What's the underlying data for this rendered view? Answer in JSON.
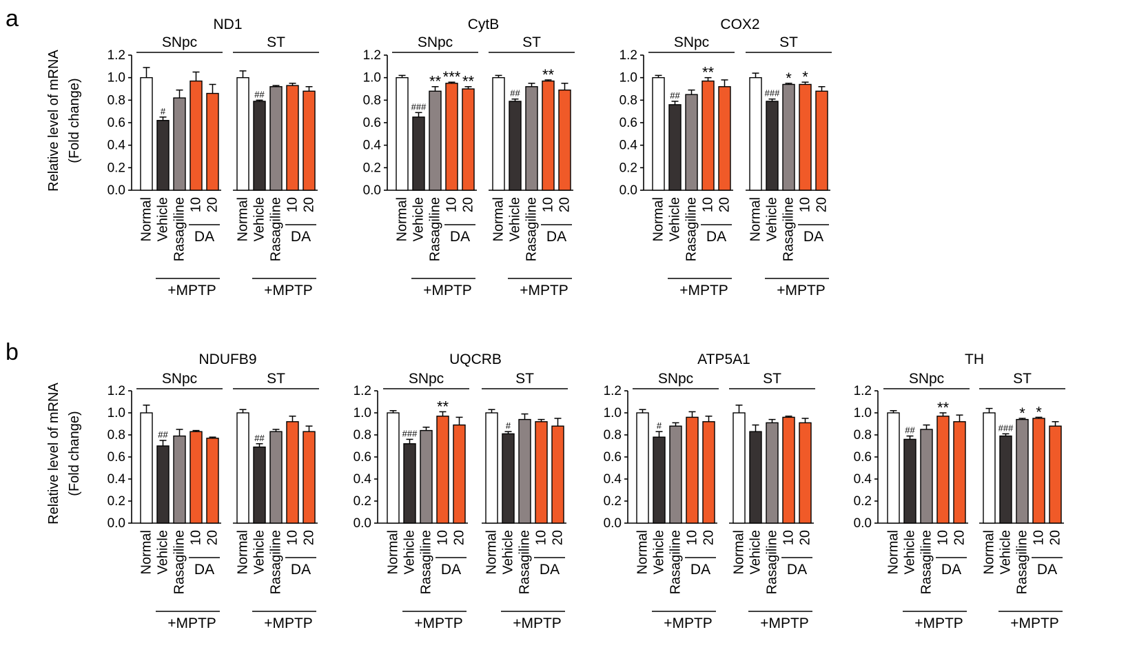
{
  "colors": {
    "normal": "#ffffff",
    "vehicle": "#373232",
    "rasagiline": "#8c8282",
    "da": "#f05a28",
    "axis": "#000000"
  },
  "labels": {
    "panel_a": "a",
    "panel_b": "b",
    "ylabel_line1": "Relative level of mRNA",
    "ylabel_line2": "(Fold change)",
    "group_snpc": "SNpc",
    "group_st": "ST",
    "bar_names": [
      "Normal",
      "Vehicle",
      "Rasagiline",
      "10",
      "20"
    ],
    "da": "DA",
    "mptp": "+MPTP"
  },
  "y_ticks": [
    "0.0",
    "0.2",
    "0.4",
    "0.6",
    "0.8",
    "1.0",
    "1.2"
  ],
  "chart_data": [
    {
      "type": "bar",
      "panel": "a",
      "title": "ND1",
      "ylabel": "Relative level of mRNA (Fold change)",
      "ylim": [
        0,
        1.2
      ],
      "categories": [
        "Normal",
        "Vehicle",
        "Rasagiline",
        "DA 10",
        "DA 20"
      ],
      "series": [
        {
          "name": "SNpc",
          "values": [
            1.0,
            0.62,
            0.82,
            0.97,
            0.86
          ],
          "errors": [
            0.09,
            0.03,
            0.07,
            0.08,
            0.08
          ],
          "annotations": [
            "",
            "#",
            "",
            "",
            ""
          ]
        },
        {
          "name": "ST",
          "values": [
            1.0,
            0.79,
            0.92,
            0.93,
            0.88
          ],
          "errors": [
            0.06,
            0.01,
            0.01,
            0.02,
            0.04
          ],
          "annotations": [
            "",
            "##",
            "",
            "",
            ""
          ]
        }
      ]
    },
    {
      "type": "bar",
      "panel": "a",
      "title": "CytB",
      "ylabel": "Relative level of mRNA (Fold change)",
      "ylim": [
        0,
        1.2
      ],
      "categories": [
        "Normal",
        "Vehicle",
        "Rasagiline",
        "DA 10",
        "DA 20"
      ],
      "series": [
        {
          "name": "SNpc",
          "values": [
            1.0,
            0.65,
            0.88,
            0.95,
            0.9
          ],
          "errors": [
            0.02,
            0.04,
            0.04,
            0.01,
            0.02
          ],
          "annotations": [
            "",
            "###",
            "**",
            "***",
            "**"
          ]
        },
        {
          "name": "ST",
          "values": [
            1.0,
            0.79,
            0.92,
            0.97,
            0.89
          ],
          "errors": [
            0.02,
            0.02,
            0.03,
            0.01,
            0.06
          ],
          "annotations": [
            "",
            "##",
            "",
            "**",
            ""
          ]
        }
      ]
    },
    {
      "type": "bar",
      "panel": "a",
      "title": "COX2",
      "ylabel": "Relative level of mRNA (Fold change)",
      "ylim": [
        0,
        1.2
      ],
      "categories": [
        "Normal",
        "Vehicle",
        "Rasagiline",
        "DA 10",
        "DA 20"
      ],
      "series": [
        {
          "name": "SNpc",
          "values": [
            1.0,
            0.76,
            0.85,
            0.97,
            0.92
          ],
          "errors": [
            0.02,
            0.03,
            0.04,
            0.03,
            0.06
          ],
          "annotations": [
            "",
            "##",
            "",
            "**",
            ""
          ]
        },
        {
          "name": "ST",
          "values": [
            1.0,
            0.79,
            0.94,
            0.94,
            0.88
          ],
          "errors": [
            0.04,
            0.02,
            0.01,
            0.02,
            0.04
          ],
          "annotations": [
            "",
            "###",
            "*",
            "*",
            ""
          ]
        }
      ]
    },
    {
      "type": "bar",
      "panel": "b",
      "title": "NDUFB9",
      "ylabel": "Relative level of mRNA (Fold change)",
      "ylim": [
        0,
        1.2
      ],
      "categories": [
        "Normal",
        "Vehicle",
        "Rasagiline",
        "DA 10",
        "DA 20"
      ],
      "series": [
        {
          "name": "SNpc",
          "values": [
            1.0,
            0.7,
            0.79,
            0.83,
            0.77
          ],
          "errors": [
            0.07,
            0.05,
            0.06,
            0.01,
            0.01
          ],
          "annotations": [
            "",
            "##",
            "",
            "",
            ""
          ]
        },
        {
          "name": "ST",
          "values": [
            1.0,
            0.69,
            0.83,
            0.92,
            0.83
          ],
          "errors": [
            0.03,
            0.03,
            0.02,
            0.05,
            0.05
          ],
          "annotations": [
            "",
            "##",
            "",
            "",
            ""
          ]
        }
      ]
    },
    {
      "type": "bar",
      "panel": "b",
      "title": "UQCRB",
      "ylabel": "Relative level of mRNA (Fold change)",
      "ylim": [
        0,
        1.2
      ],
      "categories": [
        "Normal",
        "Vehicle",
        "Rasagiline",
        "DA 10",
        "DA 20"
      ],
      "series": [
        {
          "name": "SNpc",
          "values": [
            1.0,
            0.72,
            0.84,
            0.97,
            0.89
          ],
          "errors": [
            0.02,
            0.04,
            0.03,
            0.04,
            0.07
          ],
          "annotations": [
            "",
            "###",
            "",
            "**",
            ""
          ]
        },
        {
          "name": "ST",
          "values": [
            1.0,
            0.81,
            0.94,
            0.92,
            0.88
          ],
          "errors": [
            0.03,
            0.02,
            0.05,
            0.02,
            0.07
          ],
          "annotations": [
            "",
            "#",
            "",
            "",
            ""
          ]
        }
      ]
    },
    {
      "type": "bar",
      "panel": "b",
      "title": "ATP5A1",
      "ylabel": "Relative level of mRNA (Fold change)",
      "ylim": [
        0,
        1.2
      ],
      "categories": [
        "Normal",
        "Vehicle",
        "Rasagiline",
        "DA 10",
        "DA 20"
      ],
      "series": [
        {
          "name": "SNpc",
          "values": [
            1.0,
            0.78,
            0.88,
            0.96,
            0.92
          ],
          "errors": [
            0.03,
            0.05,
            0.03,
            0.05,
            0.05
          ],
          "annotations": [
            "",
            "#",
            "",
            "",
            ""
          ]
        },
        {
          "name": "ST",
          "values": [
            1.0,
            0.83,
            0.91,
            0.96,
            0.91
          ],
          "errors": [
            0.07,
            0.06,
            0.03,
            0.01,
            0.04
          ],
          "annotations": [
            "",
            "",
            "",
            "",
            ""
          ]
        }
      ]
    },
    {
      "type": "bar",
      "panel": "b",
      "title": "TH",
      "ylabel": "Relative level of mRNA (Fold change)",
      "ylim": [
        0,
        1.2
      ],
      "categories": [
        "Normal",
        "Vehicle",
        "Rasagiline",
        "DA 10",
        "DA 20"
      ],
      "series": [
        {
          "name": "SNpc",
          "values": [
            1.0,
            0.76,
            0.85,
            0.97,
            0.92
          ],
          "errors": [
            0.02,
            0.03,
            0.04,
            0.03,
            0.06
          ],
          "annotations": [
            "",
            "##",
            "",
            "**",
            ""
          ]
        },
        {
          "name": "ST",
          "values": [
            1.0,
            0.79,
            0.94,
            0.95,
            0.88
          ],
          "errors": [
            0.04,
            0.02,
            0.01,
            0.01,
            0.04
          ],
          "annotations": [
            "",
            "###",
            "*",
            "*",
            ""
          ]
        }
      ]
    }
  ]
}
